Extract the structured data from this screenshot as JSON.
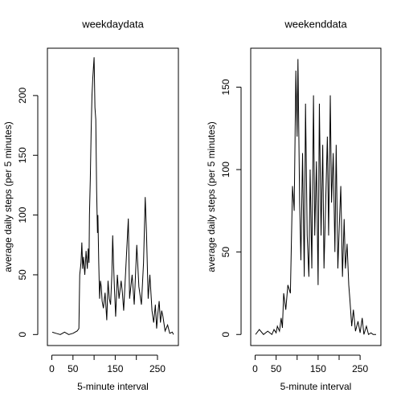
{
  "chart_data": [
    {
      "type": "line",
      "title": "weekdaydata",
      "xlabel": "5-minute interval",
      "ylabel": "average daily steps (per 5 minutes)",
      "x": [
        1,
        10,
        20,
        30,
        40,
        50,
        60,
        64,
        66,
        69,
        71,
        73,
        75,
        78,
        81,
        84,
        86,
        88,
        89,
        91,
        93,
        95,
        97,
        100,
        102,
        104,
        106,
        108,
        109,
        111,
        113,
        115,
        117,
        119,
        122,
        126,
        130,
        133,
        136,
        139,
        142,
        144,
        146,
        148,
        151,
        155,
        159,
        164,
        167,
        170,
        175,
        181,
        184,
        190,
        195,
        201,
        206,
        212,
        217,
        221,
        224,
        228,
        232,
        237,
        241,
        245,
        248,
        251,
        254,
        257,
        260,
        263,
        268,
        274,
        279,
        285,
        288
      ],
      "series": [
        {
          "name": "weekdaydata",
          "color": "#000000",
          "values": [
            2,
            1,
            0,
            2,
            0,
            1,
            3,
            5,
            50,
            60,
            77,
            55,
            65,
            50,
            70,
            55,
            72,
            60,
            100,
            130,
            170,
            200,
            215,
            232,
            190,
            180,
            120,
            85,
            100,
            60,
            30,
            45,
            40,
            28,
            22,
            35,
            12,
            45,
            30,
            25,
            50,
            83,
            60,
            40,
            15,
            50,
            30,
            45,
            35,
            20,
            55,
            97,
            30,
            50,
            25,
            75,
            40,
            25,
            60,
            115,
            85,
            30,
            50,
            20,
            10,
            25,
            5,
            18,
            28,
            10,
            20,
            15,
            3,
            8,
            1,
            2,
            0
          ]
        }
      ],
      "xlim": [
        -10.5,
        299.5
      ],
      "ylim": [
        -9.2,
        239.6
      ],
      "xticks": [
        0,
        50,
        {
          "value": 100,
          "label": null
        },
        150,
        {
          "value": 200,
          "label": null
        },
        250
      ],
      "yticks": [
        0,
        50,
        100,
        150,
        200
      ]
    },
    {
      "type": "line",
      "title": "weekenddata",
      "xlabel": "5-minute interval",
      "ylabel": "average daily steps (per 5 minutes)",
      "x": [
        1,
        10,
        20,
        30,
        40,
        45,
        50,
        53,
        58,
        62,
        65,
        68,
        73,
        78,
        84,
        89,
        93,
        97,
        100,
        102,
        106,
        109,
        113,
        117,
        120,
        124,
        128,
        131,
        135,
        139,
        142,
        146,
        150,
        153,
        157,
        161,
        164,
        168,
        172,
        175,
        179,
        182,
        186,
        190,
        193,
        197,
        201,
        204,
        208,
        212,
        215,
        219,
        223,
        226,
        230,
        234,
        239,
        245,
        250,
        255,
        259,
        265,
        270,
        276,
        281,
        288
      ],
      "series": [
        {
          "name": "weekenddata",
          "color": "#000000",
          "values": [
            0,
            3,
            0,
            2,
            0,
            3,
            1,
            5,
            2,
            10,
            4,
            25,
            15,
            30,
            25,
            90,
            75,
            160,
            120,
            167,
            80,
            45,
            110,
            35,
            140,
            60,
            35,
            100,
            40,
            145,
            60,
            105,
            30,
            140,
            60,
            115,
            40,
            80,
            120,
            60,
            145,
            80,
            110,
            50,
            115,
            40,
            70,
            90,
            35,
            70,
            40,
            55,
            30,
            20,
            5,
            15,
            2,
            8,
            1,
            10,
            0,
            5,
            0,
            1,
            0,
            0
          ]
        }
      ],
      "xlim": [
        -10.5,
        299.5
      ],
      "ylim": [
        -6.7,
        173.6
      ],
      "xticks": [
        0,
        50,
        {
          "value": 100,
          "label": null
        },
        150,
        {
          "value": 200,
          "label": null
        },
        250
      ],
      "yticks": [
        0,
        50,
        100,
        150
      ]
    }
  ]
}
